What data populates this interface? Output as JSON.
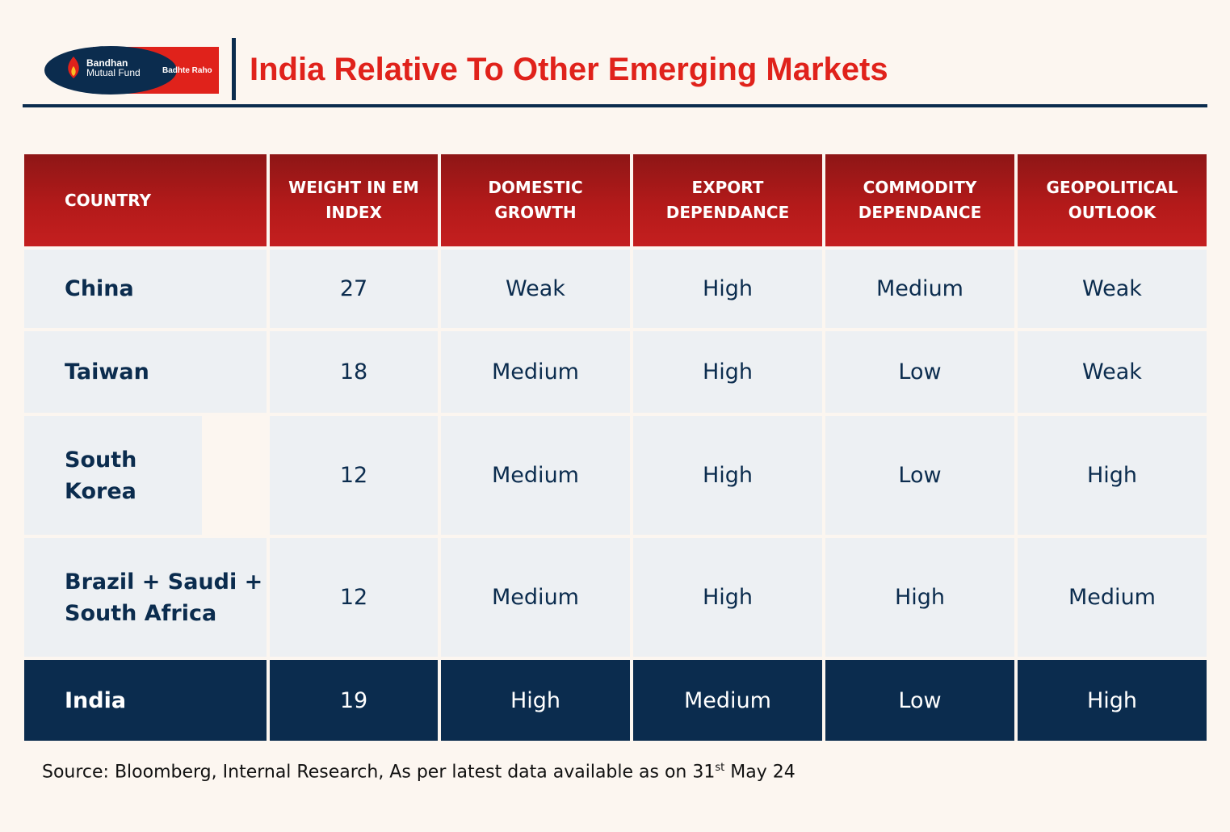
{
  "logo": {
    "brand_line1": "Bandhan",
    "brand_line2": "Mutual Fund",
    "tagline": "Badhte Raho",
    "colors": {
      "blue": "#0b2c4e",
      "red": "#e0221b"
    }
  },
  "title": "India Relative To Other Emerging Markets",
  "table": {
    "headers": [
      "COUNTRY",
      "WEIGHT IN EM INDEX",
      "DOMESTIC GROWTH",
      "EXPORT DEPENDANCE",
      "COMMODITY DEPENDANCE",
      "GEOPOLITICAL OUTLOOK"
    ],
    "rows": [
      [
        "China",
        "27",
        "Weak",
        "High",
        "Medium",
        "Weak"
      ],
      [
        "Taiwan",
        "18",
        "Medium",
        "High",
        "Low",
        "Weak"
      ],
      [
        "South Korea",
        "12",
        "Medium",
        "High",
        "Low",
        "High"
      ],
      [
        "Brazil + Saudi + South Africa",
        "12",
        "Medium",
        "High",
        "High",
        "Medium"
      ],
      [
        "India",
        "19",
        "High",
        "Medium",
        "Low",
        "High"
      ]
    ]
  },
  "source": {
    "prefix": "Source: Bloomberg, Internal Research,  As per latest data available as on 31",
    "superscript": "st",
    "suffix": "  May 24"
  },
  "colors": {
    "header_red": "#b31a1a",
    "row_grey": "#edf0f3",
    "navy": "#0b2c4e",
    "background": "#fcf6f0"
  }
}
